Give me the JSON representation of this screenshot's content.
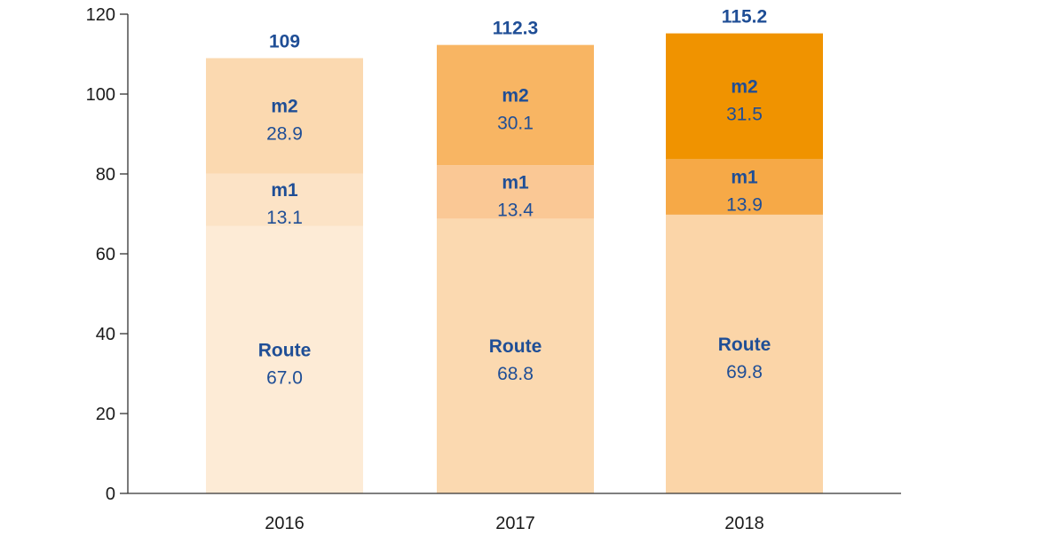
{
  "chart_data": {
    "type": "bar",
    "stacked": true,
    "categories": [
      "2016",
      "2017",
      "2018"
    ],
    "series": [
      {
        "name": "Route",
        "values": [
          67.0,
          68.8,
          69.8
        ],
        "labels": [
          "67.0",
          "68.8",
          "69.8"
        ],
        "colors": [
          "#fdebd6",
          "#fbd9b0",
          "#fbd5a8"
        ]
      },
      {
        "name": "m1",
        "values": [
          13.1,
          13.4,
          13.9
        ],
        "labels": [
          "13.1",
          "13.4",
          "13.9"
        ],
        "colors": [
          "#fce3c6",
          "#fac895",
          "#f6a947"
        ]
      },
      {
        "name": "m2",
        "values": [
          28.9,
          30.1,
          31.5
        ],
        "labels": [
          "28.9",
          "30.1",
          "31.5"
        ],
        "colors": [
          "#fbd9b0",
          "#f8b563",
          "#f09300"
        ]
      }
    ],
    "totals": [
      "109",
      "112.3",
      "115.2"
    ],
    "ylim": [
      0,
      120
    ],
    "yticks": [
      "0",
      "20",
      "40",
      "60",
      "80",
      "100",
      "120"
    ],
    "title": "",
    "xlabel": "",
    "ylabel": "",
    "grid": false,
    "label_color": "#1f4e96",
    "axis_color": "#333333"
  }
}
